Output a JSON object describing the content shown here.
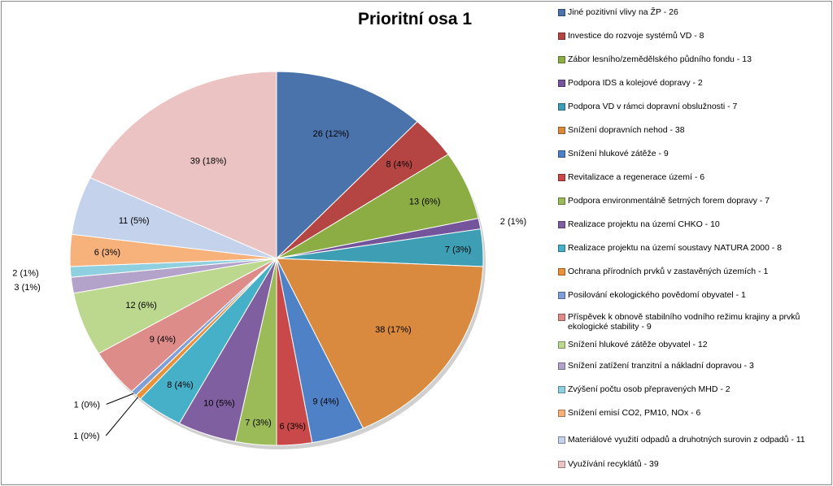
{
  "chart_data": {
    "type": "pie",
    "title": "Prioritní osa 1",
    "legend_position": "right",
    "series": [
      {
        "name": "Jiné pozitivní vlivy na ŽP - 26",
        "value": 26,
        "label": "26 (12%)",
        "color": "#4a73ab"
      },
      {
        "name": "Investice do rozvoje systémů VD - 8",
        "value": 8,
        "label": "8 (4%)",
        "color": "#b54543"
      },
      {
        "name": "Zábor lesního/zemědělského půdního fondu - 13",
        "value": 13,
        "label": "13 (6%)",
        "color": "#8cad44"
      },
      {
        "name": "Podpora IDS a kolejové dopravy - 2",
        "value": 2,
        "label": "2 (1%)",
        "color": "#74549a"
      },
      {
        "name": "Podpora VD v rámci dopravní obslužnosti - 7",
        "value": 7,
        "label": "7 (3%)",
        "color": "#3d9eb4"
      },
      {
        "name": "Snížení dopravních nehod - 38",
        "value": 38,
        "label": "38 (17%)",
        "color": "#d98a3e"
      },
      {
        "name": "Snížení hlukové zátěže - 9",
        "value": 9,
        "label": "9 (4%)",
        "color": "#4f81c7"
      },
      {
        "name": "Revitalizace a regenerace území - 6",
        "value": 6,
        "label": "6 (3%)",
        "color": "#c9484a"
      },
      {
        "name": "Podpora environmentálně šetrných forem dopravy - 7",
        "value": 7,
        "label": "7 (3%)",
        "color": "#9bbb59"
      },
      {
        "name": "Realizace projektu na území CHKO - 10",
        "value": 10,
        "label": "10 (5%)",
        "color": "#7f5f9f"
      },
      {
        "name": "Realizace projektu na území soustavy NATURA 2000 - 8",
        "value": 8,
        "label": "8 (4%)",
        "color": "#45b0c8"
      },
      {
        "name": "Ochrana přírodních prvků v zastavěných územích - 1",
        "value": 1,
        "label": "1 (0%)",
        "color": "#e8923a"
      },
      {
        "name": "Posilování ekologického povědomí obyvatel - 1",
        "value": 1,
        "label": "1 (0%)",
        "color": "#7ea0d6"
      },
      {
        "name": "Příspěvek k obnově stabilního vodního režimu krajiny a prvků ekologické stability - 9",
        "value": 9,
        "label": "9 (4%)",
        "color": "#de8c8a"
      },
      {
        "name": "Snížení hlukové zátěže obyvatel - 12",
        "value": 12,
        "label": "12 (6%)",
        "color": "#bcd78e"
      },
      {
        "name": "Snížení zatížení tranzitní a nákladní dopravou - 3",
        "value": 3,
        "label": "3 (1%)",
        "color": "#b3a2c9"
      },
      {
        "name": "Zvýšení počtu osob přepravených MHD - 2",
        "value": 2,
        "label": "2 (1%)",
        "color": "#8fd0e0"
      },
      {
        "name": "Snížení emisí CO2, PM10, NOx - 6",
        "value": 6,
        "label": "6 (3%)",
        "color": "#f7b27c"
      },
      {
        "name": "Materiálové využití odpadů a druhotných surovin z odpadů - 11",
        "value": 11,
        "label": "11 (5%)",
        "color": "#c4d2eb"
      },
      {
        "name": "Využívání recyklátů - 39",
        "value": 39,
        "label": "39 (18%)",
        "color": "#ebc3c3"
      }
    ]
  }
}
